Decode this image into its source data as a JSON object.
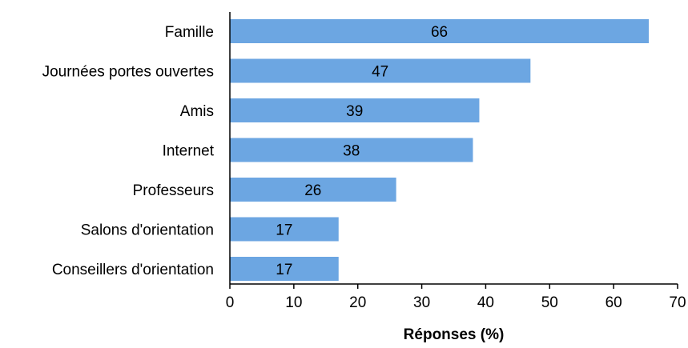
{
  "chart_data": {
    "type": "bar",
    "orientation": "horizontal",
    "categories": [
      "Famille",
      "Journées portes ouvertes",
      "Amis",
      "Internet",
      "Professeurs",
      "Salons d'orientation",
      "Conseillers d'orientation"
    ],
    "values": [
      65.5,
      47,
      39,
      38,
      26,
      17,
      17
    ],
    "data_labels": [
      "66",
      "47",
      "39",
      "38",
      "26",
      "17",
      "17"
    ],
    "title": "",
    "xlabel": "Réponses (%)",
    "ylabel": "",
    "xlim": [
      0,
      70
    ],
    "xticks": [
      0,
      10,
      20,
      30,
      40,
      50,
      60,
      70
    ],
    "grid": false,
    "legend": "none",
    "bar_color": "#6ca6e2"
  }
}
